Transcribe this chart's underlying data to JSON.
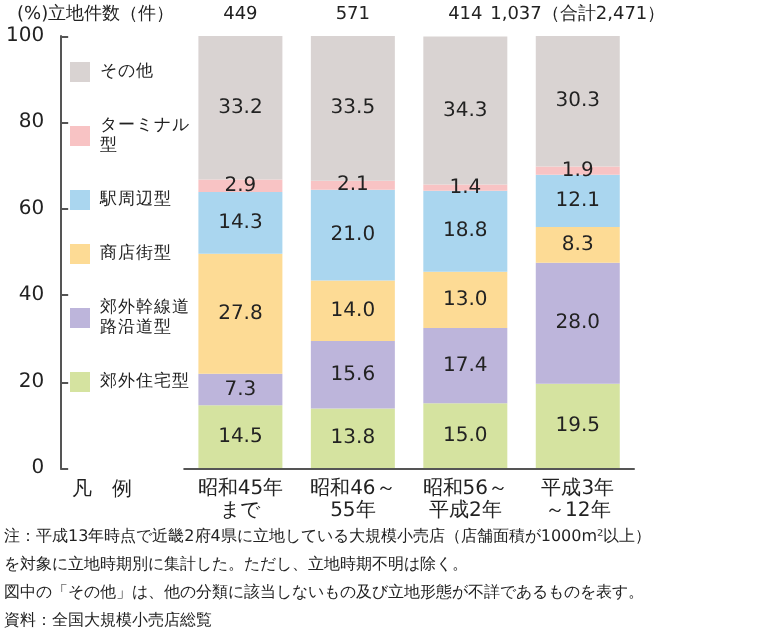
{
  "chart_data": {
    "type": "bar",
    "stacked": true,
    "ylabel": "(%)",
    "legend_title": "凡　例",
    "categories": [
      "昭和45年まで",
      "昭和46～55年",
      "昭和56～平成2年",
      "平成3年～12年"
    ],
    "ylim": [
      0,
      100
    ],
    "yticks": [
      0,
      20,
      40,
      60,
      80,
      100
    ],
    "grid": false,
    "legend": "left",
    "series": [
      {
        "name": "郊外住宅型",
        "color": "#d5e3a0",
        "values": [
          14.5,
          13.8,
          15.0,
          19.5
        ],
        "value_labels": [
          "14.5",
          "13.8",
          "15.0",
          "19.5"
        ]
      },
      {
        "name": "郊外幹線道路沿道型",
        "color": "#bdb5db",
        "values": [
          7.3,
          15.6,
          17.4,
          28.0
        ],
        "value_labels": [
          "7.3",
          "15.6",
          "17.4",
          "28.0"
        ]
      },
      {
        "name": "商店街型",
        "color": "#fddb95",
        "values": [
          27.8,
          14.0,
          13.0,
          8.3
        ],
        "value_labels": [
          "27.8",
          "14.0",
          "13.0",
          "8.3"
        ]
      },
      {
        "name": "駅周辺型",
        "color": "#aad6ef",
        "values": [
          14.3,
          21.0,
          18.8,
          12.1
        ],
        "value_labels": [
          "14.3",
          "21.0",
          "18.8",
          "12.1"
        ]
      },
      {
        "name": "ターミナル型",
        "color": "#f8c3c4",
        "values": [
          2.9,
          2.1,
          1.4,
          1.9
        ],
        "value_labels": [
          "2.9",
          "2.1",
          "1.4",
          "1.9"
        ]
      },
      {
        "name": "その他",
        "color": "#d9d3d2",
        "values": [
          33.2,
          33.5,
          34.3,
          30.3
        ],
        "value_labels": [
          "33.2",
          "33.5",
          "34.3",
          "30.3"
        ]
      }
    ],
    "annotations": [
      "立地件数（件）",
      "449",
      "571",
      "414",
      "1,037（合計2,471）",
      "注：平成13年時点で近畿2府4県に立地している大規模小売店（店舗面積が1000m²以上）",
      "を対象に立地時期別に集計した。ただし、立地時期不明は除く。",
      "図中の「その他」は、他の分類に該当しないもの及び立地形態が不詳であるものを表す。",
      "資料：全国大規模小売店総覧"
    ]
  }
}
